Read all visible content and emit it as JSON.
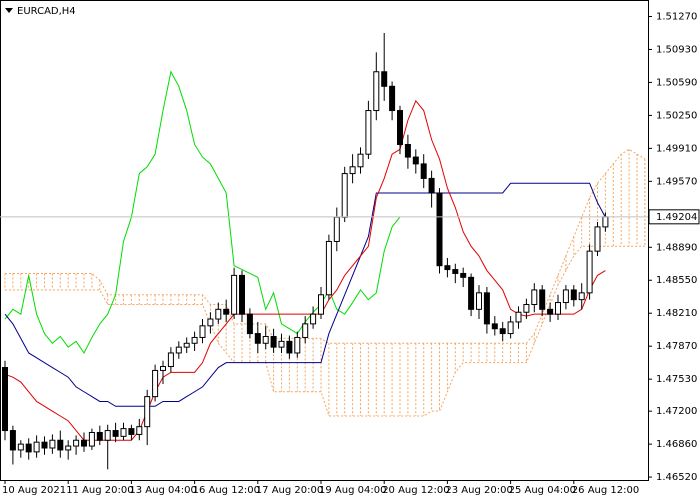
{
  "chart_data": {
    "type": "candlestick",
    "title": "EURCAD,H4",
    "categories": [
      "10 Aug 2021",
      null,
      null,
      null,
      null,
      null,
      null,
      null,
      "11 Aug 20:00",
      null,
      null,
      null,
      null,
      null,
      null,
      null,
      "13 Aug 04:00",
      null,
      null,
      null,
      null,
      null,
      null,
      null,
      "16 Aug 12:00",
      null,
      null,
      null,
      null,
      null,
      null,
      null,
      "17 Aug 20:00",
      null,
      null,
      null,
      null,
      null,
      null,
      null,
      "19 Aug 04:00",
      null,
      null,
      null,
      null,
      null,
      null,
      null,
      "20 Aug 12:00",
      null,
      null,
      null,
      null,
      null,
      null,
      null,
      "23 Aug 20:00",
      null,
      null,
      null,
      null,
      null,
      null,
      null,
      "25 Aug 04:00",
      null,
      null,
      null,
      null,
      null,
      null,
      null,
      "26 Aug 12:00",
      null,
      null,
      null,
      null,
      null,
      null,
      null,
      null,
      null
    ],
    "open": [
      1.4765,
      1.47,
      1.468,
      1.4686,
      1.4678,
      1.4688,
      1.4682,
      1.469,
      1.468,
      1.4684,
      1.469,
      1.4684,
      1.4698,
      1.469,
      1.47,
      1.4694,
      1.4702,
      1.4696,
      1.4704,
      1.4735,
      1.4762,
      1.4766,
      1.478,
      1.4786,
      1.479,
      1.4796,
      1.4808,
      1.4815,
      1.4825,
      1.482,
      1.486,
      1.482,
      1.48,
      1.479,
      1.4797,
      1.4786,
      1.4792,
      1.478,
      1.4796,
      1.481,
      1.482,
      1.484,
      1.4895,
      1.492,
      1.4965,
      1.4972,
      1.4985,
      1.503,
      1.507,
      1.5055,
      1.503,
      1.4995,
      1.4982,
      1.4975,
      1.496,
      1.4945,
      1.487,
      1.4866,
      1.4862,
      1.4858,
      1.4825,
      1.4842,
      1.481,
      1.4805,
      1.48,
      1.4812,
      1.4822,
      1.483,
      1.4845,
      1.4825,
      1.482,
      1.4832,
      1.4845,
      1.4835,
      1.4842,
      1.4885,
      1.491,
      null,
      null,
      null,
      null,
      null
    ],
    "high": [
      1.4772,
      1.4705,
      1.469,
      1.4692,
      1.4695,
      1.4694,
      1.4696,
      1.47,
      1.469,
      1.4695,
      1.4698,
      1.4702,
      1.4705,
      1.4706,
      1.4708,
      1.4708,
      1.4706,
      1.4712,
      1.4742,
      1.4768,
      1.4772,
      1.4786,
      1.4792,
      1.4796,
      1.4802,
      1.4815,
      1.4822,
      1.4832,
      1.4835,
      1.4868,
      1.4865,
      1.4826,
      1.4812,
      1.4808,
      1.4805,
      1.48,
      1.4798,
      1.4802,
      1.4818,
      1.4828,
      1.4848,
      1.4902,
      1.493,
      1.4972,
      1.4985,
      1.4992,
      1.504,
      1.509,
      1.511,
      1.506,
      1.5035,
      1.5005,
      1.499,
      1.4985,
      1.4968,
      1.495,
      1.4878,
      1.4872,
      1.4868,
      1.4862,
      1.485,
      1.4848,
      1.4818,
      1.4812,
      1.4818,
      1.4828,
      1.4836,
      1.4852,
      1.485,
      1.4832,
      1.484,
      1.485,
      1.485,
      1.4852,
      1.4892,
      1.4915,
      1.4925,
      null,
      null,
      null,
      null,
      null
    ],
    "low": [
      1.469,
      1.4665,
      1.4672,
      1.467,
      1.4672,
      1.4675,
      1.4676,
      1.4672,
      1.467,
      1.4675,
      1.4678,
      1.468,
      1.4685,
      1.466,
      1.4688,
      1.469,
      1.469,
      1.469,
      1.4685,
      1.473,
      1.4748,
      1.476,
      1.4774,
      1.478,
      1.4782,
      1.479,
      1.48,
      1.481,
      1.4812,
      1.4815,
      1.4812,
      1.4795,
      1.478,
      1.4784,
      1.478,
      1.478,
      1.4774,
      1.4775,
      1.479,
      1.4805,
      1.4815,
      1.4835,
      1.4885,
      1.4915,
      1.4955,
      1.4965,
      1.498,
      1.502,
      1.504,
      1.502,
      1.4985,
      1.497,
      1.4965,
      1.495,
      1.493,
      1.4862,
      1.4858,
      1.4852,
      1.4848,
      1.4818,
      1.4815,
      1.48,
      1.4798,
      1.4792,
      1.4795,
      1.4805,
      1.4815,
      1.4822,
      1.4818,
      1.4812,
      1.4814,
      1.4825,
      1.4828,
      1.4825,
      1.4835,
      1.488,
      1.4905,
      null,
      null,
      null,
      null,
      null
    ],
    "close": [
      1.47,
      1.468,
      1.4686,
      1.4678,
      1.4688,
      1.4682,
      1.469,
      1.468,
      1.4684,
      1.469,
      1.4684,
      1.4698,
      1.469,
      1.47,
      1.4694,
      1.4702,
      1.4696,
      1.4704,
      1.4735,
      1.4762,
      1.4766,
      1.478,
      1.4786,
      1.479,
      1.4796,
      1.4808,
      1.4815,
      1.4825,
      1.482,
      1.486,
      1.482,
      1.48,
      1.479,
      1.4797,
      1.4786,
      1.4792,
      1.478,
      1.4796,
      1.481,
      1.482,
      1.484,
      1.4895,
      1.492,
      1.4965,
      1.4972,
      1.4985,
      1.503,
      1.507,
      1.5055,
      1.503,
      1.4995,
      1.4982,
      1.4975,
      1.496,
      1.4945,
      1.487,
      1.4866,
      1.4862,
      1.4858,
      1.4825,
      1.4842,
      1.481,
      1.4805,
      1.48,
      1.4812,
      1.4822,
      1.483,
      1.4845,
      1.4825,
      1.482,
      1.4832,
      1.4845,
      1.4835,
      1.4842,
      1.4885,
      1.491,
      1.49204,
      null,
      null,
      null,
      null,
      null
    ],
    "up_color": "#ffffff",
    "down_color": "#000000",
    "candle_outline": "#000000",
    "ichimoku": {
      "tenkan": {
        "color": "#e00000",
        "values": [
          1.4758,
          1.4755,
          1.475,
          1.474,
          1.473,
          1.4725,
          1.472,
          1.4715,
          1.471,
          1.47,
          1.469,
          1.469,
          1.469,
          1.469,
          1.469,
          1.469,
          1.469,
          1.47,
          1.472,
          1.474,
          1.4755,
          1.476,
          1.476,
          1.476,
          1.476,
          1.477,
          1.479,
          1.48,
          1.481,
          1.482,
          1.482,
          1.482,
          1.482,
          1.482,
          1.482,
          1.482,
          1.482,
          1.482,
          1.482,
          1.482,
          1.482,
          1.4835,
          1.4845,
          1.486,
          1.487,
          1.488,
          1.489,
          1.494,
          1.496,
          1.4985,
          1.499,
          1.502,
          1.504,
          1.503,
          1.5,
          1.498,
          1.495,
          1.493,
          1.4905,
          1.489,
          1.488,
          1.4865,
          1.4855,
          1.4845,
          1.4825,
          1.482,
          1.4818,
          1.482,
          1.482,
          1.482,
          1.482,
          1.482,
          1.482,
          1.4825,
          1.4845,
          1.486,
          1.4865,
          null,
          null,
          null,
          null,
          null
        ]
      },
      "kijun": {
        "color": "#00008b",
        "values": [
          1.482,
          1.481,
          1.4795,
          1.478,
          1.4775,
          1.477,
          1.4765,
          1.476,
          1.4755,
          1.4745,
          1.474,
          1.4735,
          1.473,
          1.473,
          1.4725,
          1.4725,
          1.4725,
          1.4725,
          1.4725,
          1.4725,
          1.473,
          1.473,
          1.473,
          1.4735,
          1.474,
          1.4745,
          1.4755,
          1.4765,
          1.477,
          1.477,
          1.477,
          1.477,
          1.477,
          1.477,
          1.477,
          1.477,
          1.477,
          1.477,
          1.477,
          1.477,
          1.477,
          1.48,
          1.482,
          1.484,
          1.486,
          1.488,
          1.49,
          1.4945,
          1.4945,
          1.4945,
          1.4945,
          1.4945,
          1.4945,
          1.4945,
          1.4945,
          1.4945,
          1.4945,
          1.4945,
          1.4945,
          1.4945,
          1.4945,
          1.4945,
          1.4945,
          1.4945,
          1.4955,
          1.4955,
          1.4955,
          1.4955,
          1.4955,
          1.4955,
          1.4955,
          1.4955,
          1.4955,
          1.4955,
          1.4955,
          1.4935,
          1.492,
          null,
          null,
          null,
          null,
          null
        ]
      },
      "chikou": {
        "color": "#00dd00",
        "shift": 26
      },
      "cloud_color": "#f4a460",
      "senkou_a": {
        "values": [
          1.4862,
          1.4862,
          1.4862,
          1.4862,
          1.4862,
          1.4862,
          1.4862,
          1.4862,
          1.4862,
          1.4862,
          1.4862,
          1.4862,
          1.4855,
          1.484,
          1.484,
          1.484,
          1.484,
          1.484,
          1.484,
          1.484,
          1.484,
          1.484,
          1.484,
          1.484,
          1.484,
          1.484,
          1.483,
          1.483,
          1.483,
          1.481,
          1.481,
          1.481,
          1.481,
          1.481,
          1.4795,
          1.4795,
          1.4795,
          1.4795,
          1.4795,
          1.4795,
          1.4795,
          1.479,
          1.479,
          1.479,
          1.479,
          1.479,
          1.479,
          1.479,
          1.479,
          1.479,
          1.479,
          1.479,
          1.479,
          1.479,
          1.479,
          1.479,
          1.479,
          1.479,
          1.479,
          1.479,
          1.479,
          1.479,
          1.479,
          1.479,
          1.479,
          1.479,
          1.479,
          1.48,
          1.482,
          1.484,
          1.486,
          1.488,
          1.49,
          1.492,
          1.494,
          1.4955,
          1.4965,
          1.4975,
          1.4985,
          1.499,
          1.4985,
          1.498
        ]
      },
      "senkou_b": {
        "values": [
          1.4845,
          1.4845,
          1.4845,
          1.4845,
          1.4845,
          1.4845,
          1.4845,
          1.4845,
          1.4845,
          1.4845,
          1.4845,
          1.4845,
          1.4845,
          1.483,
          1.483,
          1.483,
          1.483,
          1.483,
          1.483,
          1.483,
          1.483,
          1.483,
          1.483,
          1.483,
          1.483,
          1.483,
          1.481,
          1.479,
          1.478,
          1.477,
          1.477,
          1.477,
          1.477,
          1.477,
          1.474,
          1.474,
          1.474,
          1.474,
          1.474,
          1.474,
          1.474,
          1.4715,
          1.4715,
          1.4715,
          1.4715,
          1.4715,
          1.4715,
          1.4715,
          1.4715,
          1.4715,
          1.4715,
          1.4715,
          1.4715,
          1.4715,
          1.472,
          1.472,
          1.474,
          1.476,
          1.477,
          1.477,
          1.477,
          1.477,
          1.477,
          1.477,
          1.477,
          1.477,
          1.477,
          1.479,
          1.481,
          1.483,
          1.485,
          1.4865,
          1.488,
          1.489,
          1.489,
          1.489,
          1.489,
          1.489,
          1.489,
          1.489,
          1.489,
          1.489
        ]
      }
    },
    "last_price": 1.49204,
    "last_price_color": "#c0c0c0",
    "ylim": [
      1.4649,
      1.5144
    ],
    "yticks": [
      {
        "value": 1.5127,
        "label": "1.51270"
      },
      {
        "value": 1.5093,
        "label": "1.50930"
      },
      {
        "value": 1.5059,
        "label": "1.50590"
      },
      {
        "value": 1.5025,
        "label": "1.50250"
      },
      {
        "value": 1.4991,
        "label": "1.49910"
      },
      {
        "value": 1.4957,
        "label": "1.49570"
      },
      {
        "value": 1.4889,
        "label": "1.48890"
      },
      {
        "value": 1.4855,
        "label": "1.48550"
      },
      {
        "value": 1.4821,
        "label": "1.48210"
      },
      {
        "value": 1.4787,
        "label": "1.47870"
      },
      {
        "value": 1.4753,
        "label": "1.47530"
      },
      {
        "value": 1.472,
        "label": "1.47200"
      },
      {
        "value": 1.4686,
        "label": "1.46860"
      },
      {
        "value": 1.4652,
        "label": "1.46520"
      }
    ],
    "grid": false
  }
}
